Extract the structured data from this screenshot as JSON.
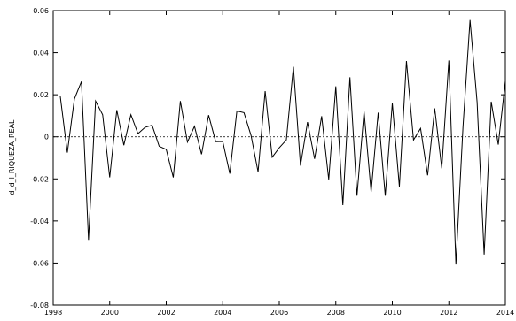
{
  "chart_data": {
    "type": "line",
    "title": "",
    "xlabel": "",
    "ylabel": "d_d_l_RIQUEZA_REAL",
    "xlim": [
      1998,
      2014
    ],
    "ylim": [
      -0.08,
      0.06
    ],
    "grid": false,
    "zero_line": "dashed",
    "x_ticks": [
      1998,
      2000,
      2002,
      2004,
      2006,
      2008,
      2010,
      2012,
      2014
    ],
    "x_tick_labels": [
      "1998",
      "2000",
      "2002",
      "2004",
      "2006",
      "2008",
      "2010",
      "2012",
      "2014"
    ],
    "y_ticks": [
      -0.08,
      -0.06,
      -0.04,
      -0.02,
      0,
      0.02,
      0.04,
      0.06
    ],
    "y_tick_labels": [
      "-0.08",
      "-0.06",
      "-0.04",
      "-0.02",
      "0",
      "0.02",
      "0.04",
      "0.06"
    ],
    "series": [
      {
        "x": [
          1998.25,
          1998.5,
          1998.75,
          1999.0,
          1999.25,
          1999.5,
          1999.75,
          2000.0,
          2000.25,
          2000.5,
          2000.75,
          2001.0,
          2001.25,
          2001.5,
          2001.75,
          2002.0,
          2002.25,
          2002.5,
          2002.75,
          2003.0,
          2003.25,
          2003.5,
          2003.75,
          2004.0,
          2004.25,
          2004.5,
          2004.75,
          2005.0,
          2005.25,
          2005.5,
          2005.75,
          2006.0,
          2006.25,
          2006.5,
          2006.75,
          2007.0,
          2007.25,
          2007.5,
          2007.75,
          2008.0,
          2008.25,
          2008.5,
          2008.75,
          2009.0,
          2009.25,
          2009.5,
          2009.75,
          2010.0,
          2010.25,
          2010.5,
          2010.75,
          2011.0,
          2011.25,
          2011.5,
          2011.75,
          2012.0,
          2012.25,
          2012.5,
          2012.75,
          2013.0,
          2013.25,
          2013.5,
          2013.75,
          2014.0
        ],
        "values": [
          0.0193,
          -0.0075,
          0.018,
          0.0263,
          -0.049,
          0.017,
          0.0105,
          -0.0193,
          0.0127,
          -0.004,
          0.0105,
          0.0015,
          0.0045,
          0.0055,
          -0.0045,
          -0.006,
          -0.0193,
          0.017,
          -0.0025,
          0.005,
          -0.0083,
          0.0103,
          -0.0023,
          -0.0022,
          -0.0175,
          0.0123,
          0.0115,
          0.0007,
          -0.0167,
          0.0217,
          -0.0097,
          -0.0052,
          -0.0015,
          0.0333,
          -0.0137,
          0.007,
          -0.0105,
          0.0098,
          -0.0203,
          0.024,
          -0.0325,
          0.0283,
          -0.028,
          0.012,
          -0.0262,
          0.0115,
          -0.028,
          0.016,
          -0.0237,
          0.036,
          -0.0015,
          0.004,
          -0.0183,
          0.0135,
          -0.015,
          0.0363,
          -0.0607,
          0.0045,
          0.0555,
          0.0165,
          -0.056,
          0.0167,
          -0.0037,
          0.0265
        ]
      }
    ]
  }
}
